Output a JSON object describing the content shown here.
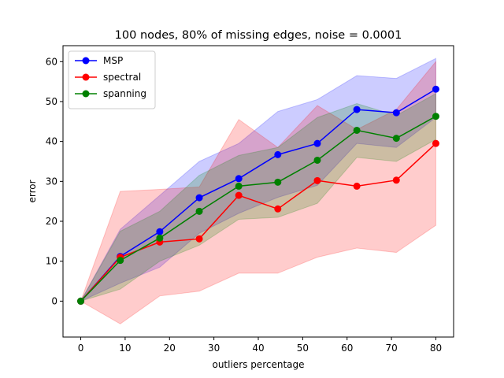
{
  "chart_data": {
    "type": "line",
    "title": "100 nodes, 80% of missing edges, noise = 0.0001",
    "xlabel": "outliers percentage",
    "ylabel": "error",
    "xlim": [
      -4,
      84
    ],
    "ylim": [
      -9,
      64
    ],
    "xticks": [
      0,
      10,
      20,
      30,
      40,
      50,
      60,
      70,
      80
    ],
    "yticks": [
      0,
      10,
      20,
      30,
      40,
      50,
      60
    ],
    "grid": false,
    "legend_position": "top-left",
    "x": [
      0,
      8.9,
      17.8,
      26.7,
      35.6,
      44.4,
      53.3,
      62.2,
      71.1,
      80
    ],
    "series": [
      {
        "name": "MSP",
        "color": "#0000ff",
        "values": [
          0,
          11.2,
          17.4,
          25.9,
          30.7,
          36.7,
          39.5,
          48.0,
          47.2,
          53.1
        ],
        "lower": [
          0,
          4.5,
          8.5,
          17.0,
          22.0,
          26.0,
          29.0,
          39.5,
          38.5,
          46.0
        ],
        "upper": [
          0,
          18.0,
          26.5,
          35.0,
          39.5,
          47.5,
          50.5,
          56.5,
          55.8,
          60.8
        ]
      },
      {
        "name": "spectral",
        "color": "#ff0000",
        "values": [
          0,
          11.0,
          14.8,
          15.6,
          26.5,
          23.1,
          30.2,
          28.8,
          30.3,
          39.5
        ],
        "lower": [
          0,
          -5.7,
          1.3,
          2.5,
          7.0,
          7.0,
          11.0,
          13.3,
          12.2,
          19.0
        ],
        "upper": [
          0,
          27.5,
          28.0,
          28.6,
          45.5,
          38.5,
          49.0,
          43.0,
          48.0,
          60.0
        ]
      },
      {
        "name": "spanning",
        "color": "#008000",
        "values": [
          0,
          10.2,
          15.8,
          22.5,
          28.8,
          29.8,
          35.3,
          42.8,
          40.8,
          46.3
        ],
        "lower": [
          0,
          3.0,
          10.0,
          14.0,
          20.5,
          21.0,
          24.5,
          36.0,
          35.0,
          40.5
        ],
        "upper": [
          0,
          17.5,
          22.5,
          31.5,
          36.5,
          38.5,
          46.0,
          49.5,
          46.5,
          52.0
        ]
      }
    ]
  }
}
